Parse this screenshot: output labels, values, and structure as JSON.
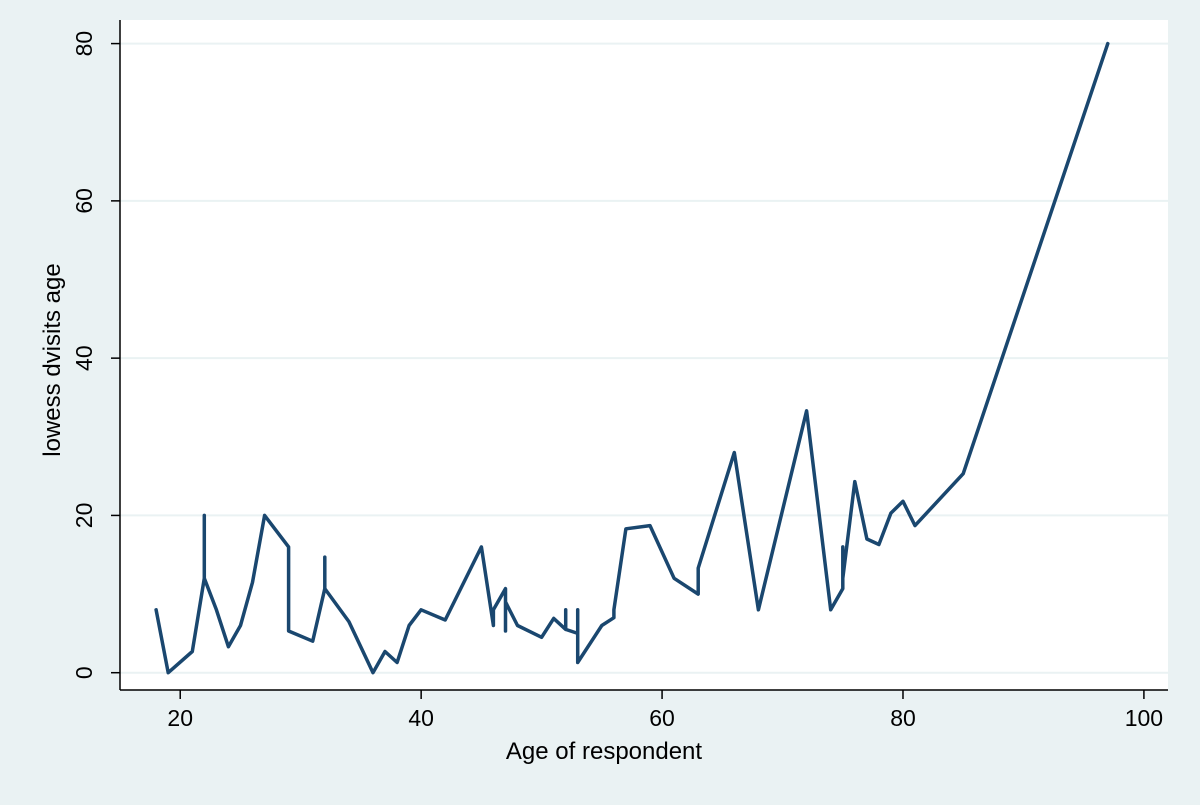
{
  "chart_data": {
    "type": "line",
    "title": "",
    "xlabel": "Age of respondent",
    "ylabel": "lowess dvisits age",
    "xlim": [
      15,
      102
    ],
    "ylim": [
      -2.2,
      83
    ],
    "xticks": [
      20,
      40,
      60,
      80,
      100
    ],
    "yticks": [
      0,
      20,
      40,
      60,
      80
    ],
    "grid": "horizontal",
    "legend": "none",
    "colors": {
      "background": "#eaf2f3",
      "plot_area": "#ffffff",
      "line": "#1a476f",
      "grid": "#eaf2f3",
      "axis": "#000000"
    },
    "series": [
      {
        "x": [
          18,
          19,
          21,
          22,
          22,
          22,
          23,
          24,
          25,
          26,
          27,
          29,
          29,
          29,
          31,
          32,
          32,
          32,
          34,
          36,
          37,
          38,
          39,
          40,
          42,
          45,
          46,
          46,
          47,
          47,
          47,
          48,
          50,
          51,
          52,
          52,
          52,
          53,
          53,
          53,
          55,
          56,
          56,
          57,
          59,
          61,
          63,
          63,
          66,
          68,
          72,
          74,
          75,
          75,
          75,
          76,
          77,
          78,
          79,
          80,
          81,
          85,
          97
        ],
        "y": [
          8,
          0,
          2.7,
          12,
          20,
          12,
          8,
          3.3,
          6,
          11.5,
          20,
          16,
          14,
          5.3,
          4,
          10.7,
          14.7,
          10.7,
          6.5,
          0,
          2.7,
          1.3,
          6,
          8,
          6.7,
          16,
          6,
          8,
          10.7,
          5.3,
          9,
          6,
          4.5,
          6.9,
          5.5,
          8,
          5.5,
          5,
          8,
          1.3,
          6,
          7,
          8,
          18.3,
          18.7,
          12,
          10,
          13.3,
          28,
          8,
          33.3,
          8,
          10.7,
          16,
          12,
          24.3,
          17,
          16.3,
          20.3,
          21.8,
          18.7,
          25.3,
          80
        ]
      }
    ]
  }
}
